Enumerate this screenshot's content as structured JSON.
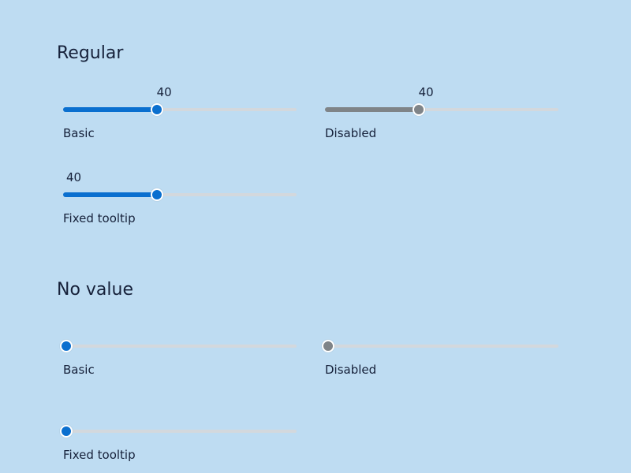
{
  "sections": {
    "regular": {
      "title": "Regular",
      "basic": {
        "caption": "Basic",
        "value": 40,
        "value_text": "40",
        "max": 100
      },
      "disabled": {
        "caption": "Disabled",
        "value": 40,
        "value_text": "40",
        "max": 100
      },
      "fixed_tooltip": {
        "caption": "Fixed tooltip",
        "value": 40,
        "value_text": "40",
        "max": 100
      }
    },
    "no_value": {
      "title": "No value",
      "basic": {
        "caption": "Basic",
        "value": 0,
        "max": 100
      },
      "disabled": {
        "caption": "Disabled",
        "value": 0,
        "max": 100
      },
      "fixed_tooltip": {
        "caption": "Fixed tooltip",
        "value": 0,
        "max": 100
      }
    }
  },
  "colors": {
    "background": "#bedcf2",
    "accent": "#0a6fcf",
    "disabled": "#7f8488",
    "track": "#d3d8dd",
    "text": "#16213a"
  }
}
